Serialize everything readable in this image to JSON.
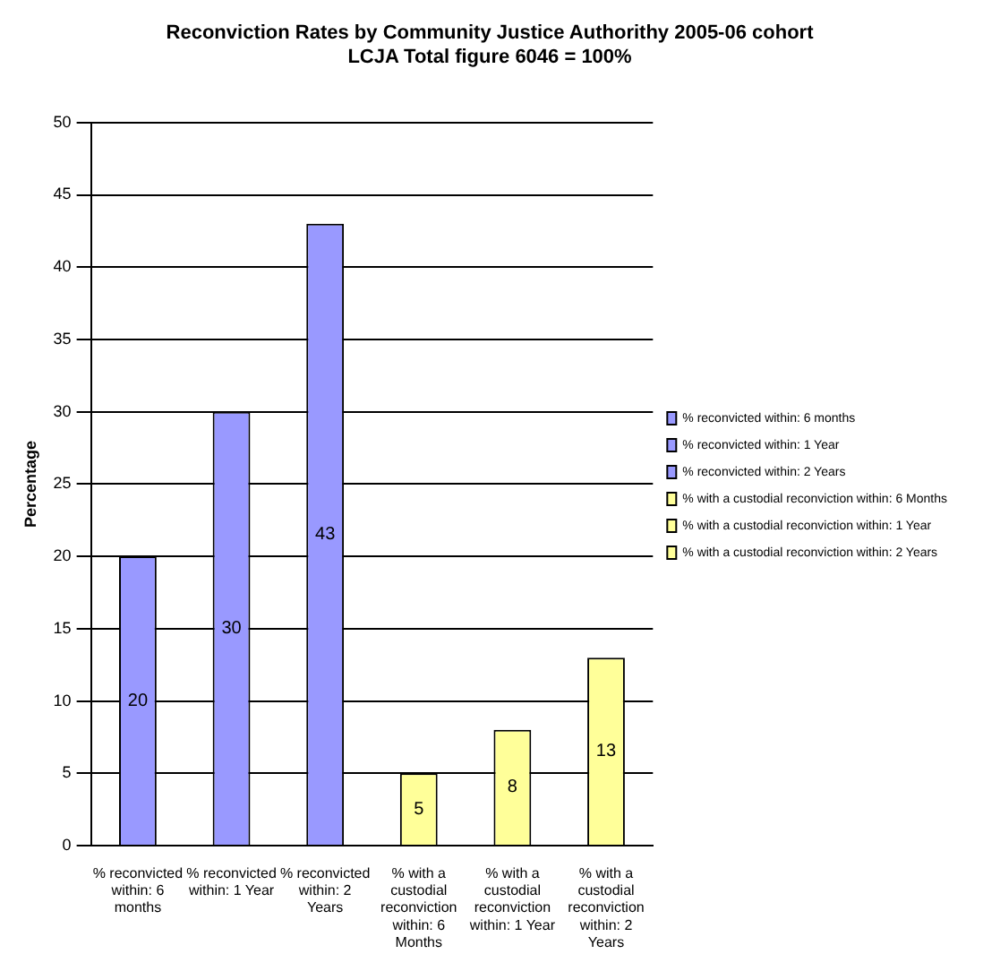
{
  "chart_data": {
    "type": "bar",
    "title": "Reconviction Rates by Community Justice Authorithy 2005-06 cohort",
    "subtitle": "LCJA Total figure 6046 = 100%",
    "ylabel": "Percentage",
    "categories": [
      "% reconvicted within: 6 months",
      "% reconvicted within: 1 Year",
      "% reconvicted within: 2 Years",
      "% with a custodial reconviction within: 6 Months",
      "% with a custodial reconviction within: 1 Year",
      "% with a custodial reconviction within: 2 Years"
    ],
    "series": [
      {
        "name": "% reconvicted within: 6 months",
        "color": "#9999ff",
        "values": [
          20,
          null,
          null,
          null,
          null,
          null
        ]
      },
      {
        "name": "% reconvicted within: 1 Year",
        "color": "#9999ff",
        "values": [
          null,
          30,
          null,
          null,
          null,
          null
        ]
      },
      {
        "name": "% reconvicted within: 2 Years",
        "color": "#9999ff",
        "values": [
          null,
          null,
          43,
          null,
          null,
          null
        ]
      },
      {
        "name": "% with a custodial reconviction within: 6 Months",
        "color": "#ffff99",
        "values": [
          null,
          null,
          null,
          5,
          null,
          null
        ]
      },
      {
        "name": "% with a custodial reconviction within: 1 Year",
        "color": "#ffff99",
        "values": [
          null,
          null,
          null,
          null,
          8,
          null
        ]
      },
      {
        "name": "% with a custodial reconviction within: 2 Years",
        "color": "#ffff99",
        "values": [
          null,
          null,
          null,
          null,
          null,
          13
        ]
      }
    ],
    "ylim": [
      0,
      50
    ],
    "yticks": [
      0,
      5,
      10,
      15,
      20,
      25,
      30,
      35,
      40,
      45,
      50
    ],
    "grid": "y",
    "legend": "right",
    "data_labels": true
  }
}
